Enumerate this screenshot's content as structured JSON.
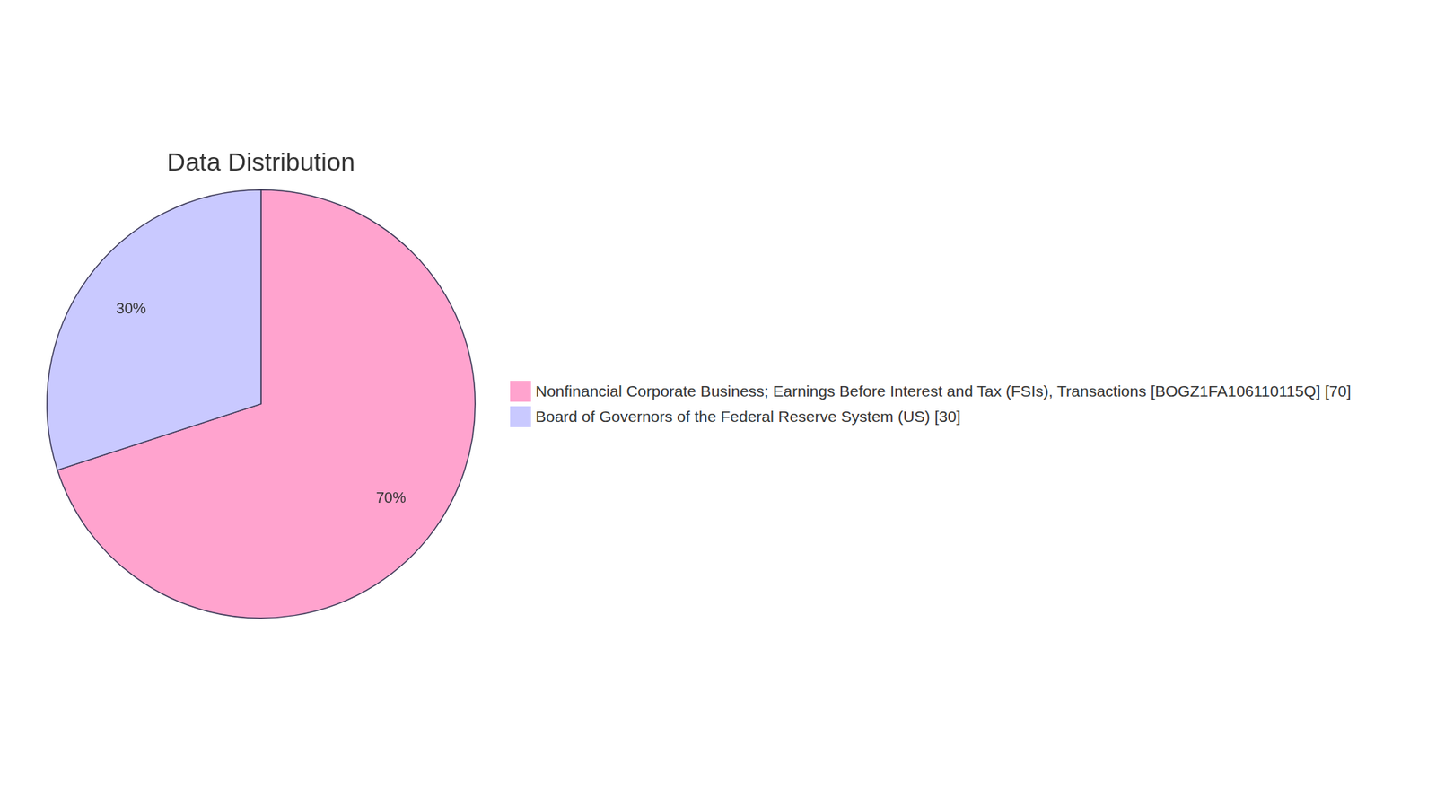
{
  "chart_data": {
    "type": "pie",
    "title": "Data Distribution",
    "categories": [
      "Nonfinancial Corporate Business; Earnings Before Interest and Tax (FSIs), Transactions [BOGZ1FA106110115Q] [70]",
      "Board of Governors of the Federal Reserve System (US) [30]"
    ],
    "values": [
      70,
      30
    ],
    "value_labels": [
      "70%",
      "30%"
    ],
    "data_labels": true,
    "colors": [
      "#ffa3ce",
      "#c9c9ff"
    ],
    "legend": "right"
  }
}
